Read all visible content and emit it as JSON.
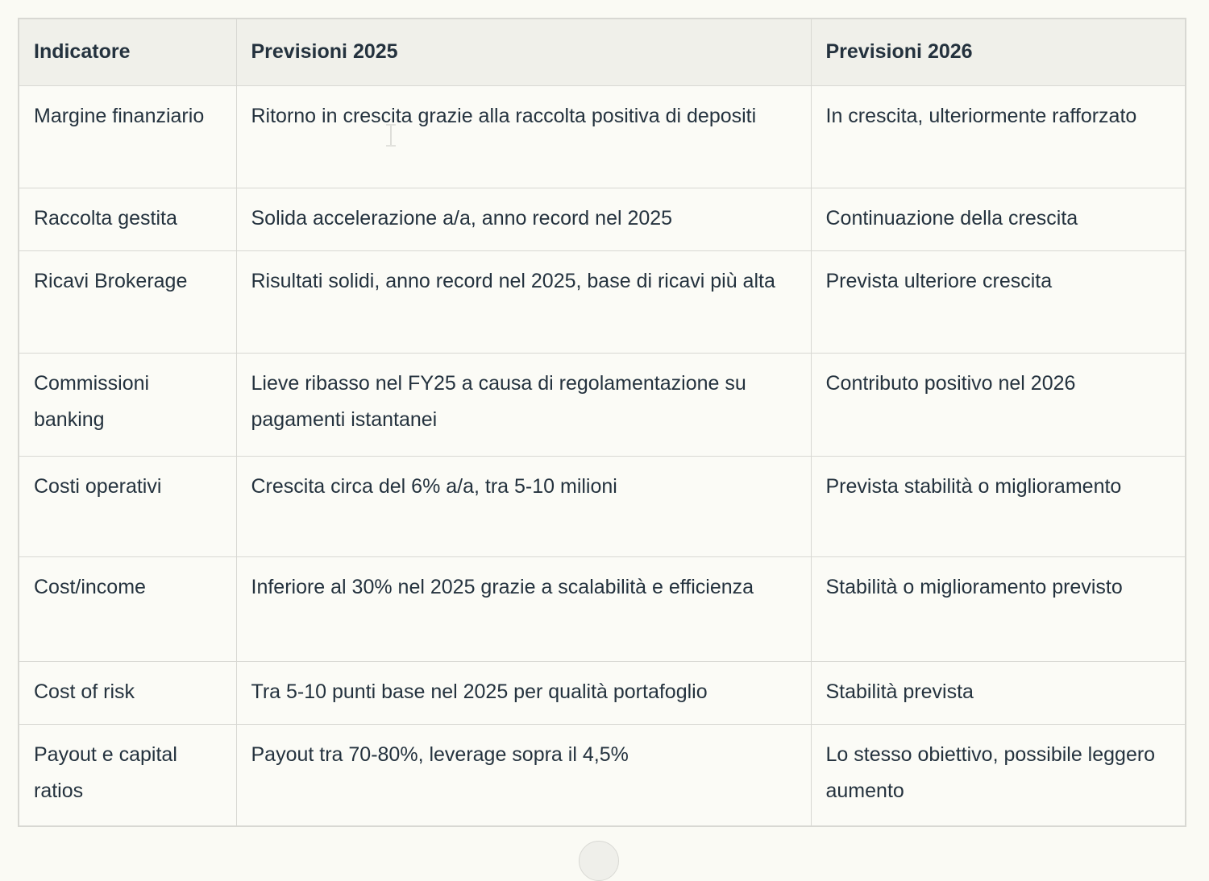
{
  "table": {
    "headers": [
      {
        "key": "indicator",
        "label": "Indicatore"
      },
      {
        "key": "f2025",
        "label": "Previsioni 2025"
      },
      {
        "key": "f2026",
        "label": "Previsioni 2026"
      }
    ],
    "rows": [
      {
        "indicator": "Margine finanziario",
        "f2025": "Ritorno in crescita grazie alla raccolta positiva di depositi",
        "f2026": "In crescita, ulteriormente rafforzato"
      },
      {
        "indicator": "Raccolta gestita",
        "f2025": "Solida accelerazione a/a, anno record nel 2025",
        "f2026": "Continuazione della crescita"
      },
      {
        "indicator": "Ricavi Brokerage",
        "f2025": "Risultati solidi, anno record nel 2025, base di ricavi più alta",
        "f2026": "Prevista ulteriore crescita"
      },
      {
        "indicator": "Commissioni banking",
        "f2025": "Lieve ribasso nel FY25 a causa di regolamentazione su pagamenti istantanei",
        "f2026": "Contributo positivo nel 2026"
      },
      {
        "indicator": "Costi operativi",
        "f2025": "Crescita circa del 6% a/a, tra 5-10 milioni",
        "f2026": "Prevista stabilità o miglioramento"
      },
      {
        "indicator": "Cost/income",
        "f2025": "Inferiore al 30% nel 2025 grazie a scalabilità e efficienza",
        "f2026": "Stabilità o miglioramento previsto"
      },
      {
        "indicator": "Cost of risk",
        "f2025": "Tra 5-10 punti base nel 2025 per qualità portafoglio",
        "f2026": "Stabilità prevista"
      },
      {
        "indicator": "Payout e capital ratios",
        "f2025": "Payout tra 70-80%, leverage sopra il 4,5%",
        "f2026": "Lo stesso obiettivo, possibile leggero aumento"
      }
    ]
  },
  "icons": {
    "text_cursor": "i-beam-text-cursor",
    "bottom_partial_circle": "partial-circle-button"
  },
  "colors": {
    "page_bg": "#FAFAF4",
    "cell_bg": "#FBFBF6",
    "header_bg": "#F0F0EA",
    "border": "#D8D8D3",
    "text": "#24323E"
  }
}
